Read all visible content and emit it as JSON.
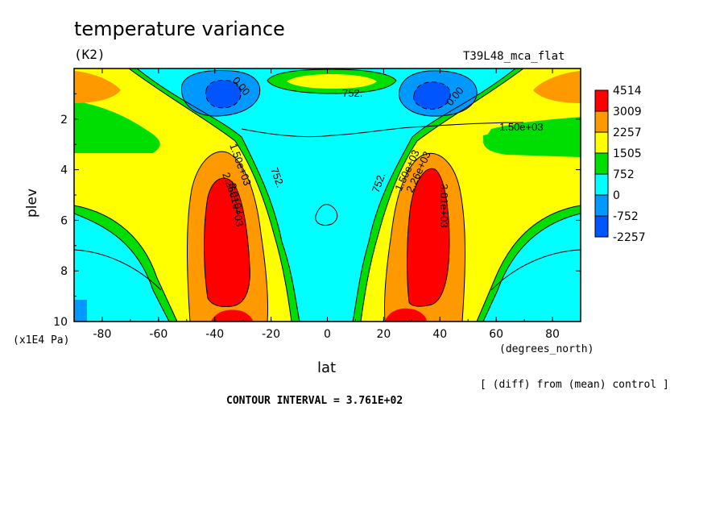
{
  "header": {
    "title": "temperature variance",
    "units": "(K2)",
    "experiment": "T39L48_mca_flat"
  },
  "footer": {
    "diff_note": "[ (diff) from (mean) control ]",
    "contour_interval": "CONTOUR INTERVAL = 3.761E+02"
  },
  "chart_data": {
    "type": "heatmap",
    "subtype": "filled-contour",
    "title": "temperature variance",
    "xlabel": "lat",
    "ylabel": "plev",
    "x_units": "(degrees_north)",
    "y_units": "(x1E4 Pa)",
    "xlim": [
      -90,
      90
    ],
    "ylim": [
      10,
      0
    ],
    "x_ticks": [
      -80,
      -60,
      -40,
      -20,
      0,
      20,
      40,
      60,
      80
    ],
    "x_tick_labels": [
      "-80",
      "-60",
      "-40",
      "-20",
      "0",
      "20",
      "40",
      "60",
      "80"
    ],
    "y_ticks": [
      2,
      4,
      6,
      8,
      10
    ],
    "y_tick_labels": [
      "2",
      "4",
      "6",
      "8",
      "10"
    ],
    "colorbar": {
      "labels": [
        "4514",
        "3009",
        "2257",
        "1505",
        "752",
        "0",
        "-752",
        "-2257"
      ],
      "colors": [
        "#ff0000",
        "#ff9900",
        "#ffff00",
        "#00dd00",
        "#00ffff",
        "#0099ff",
        "#0055ff"
      ]
    },
    "contour_labels": [
      "0.00",
      "752.",
      "0.00",
      "1.50e+03",
      "1.50e+03",
      "752.",
      "2.26e+03",
      "3.01e+03",
      "752.",
      "1.50e+03",
      "2.26e+03",
      "3.01e+03"
    ],
    "features": [
      {
        "name": "SH max",
        "lat": -34,
        "plev": 6.5,
        "value": "> 3009"
      },
      {
        "name": "NH max",
        "lat": 34,
        "plev": 6.5,
        "value": "> 3009"
      },
      {
        "name": "SH upper min",
        "lat": -40,
        "plev": 1.0,
        "value": "< 0"
      },
      {
        "name": "NH upper min",
        "lat": 40,
        "plev": 1.0,
        "value": "< 0"
      },
      {
        "name": "equatorial upper band",
        "lat": 0,
        "plev": 0.5,
        "value": "752-2257"
      }
    ]
  }
}
